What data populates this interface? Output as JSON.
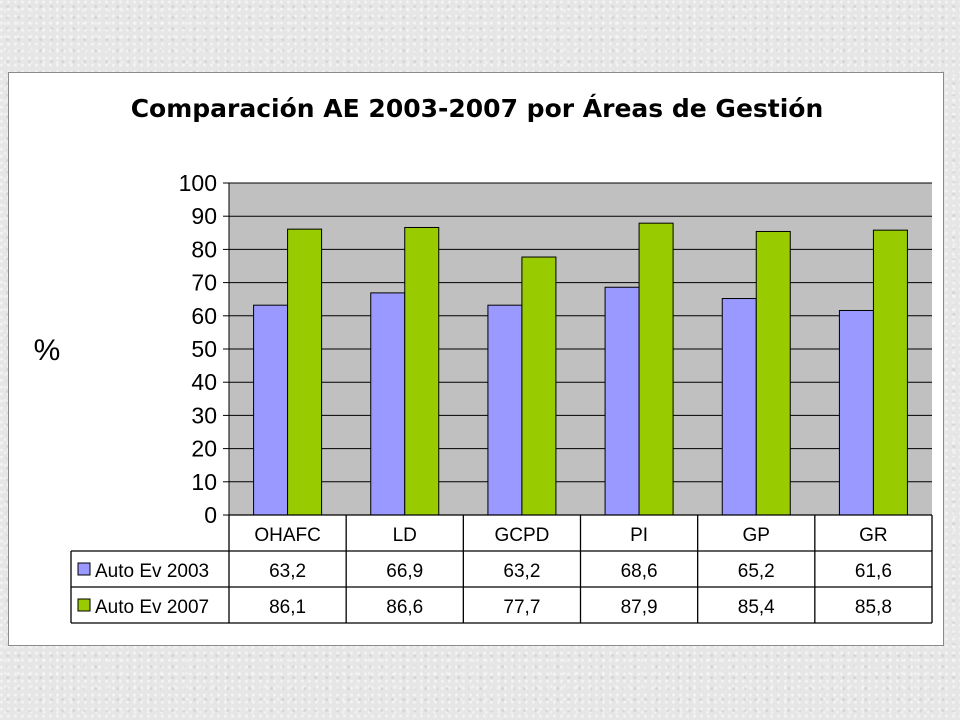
{
  "chart_data": {
    "type": "bar",
    "title": "Comparación AE  2003-2007 por Áreas de Gestión",
    "ylabel": "%",
    "xlabel": "",
    "ylim": [
      0,
      100
    ],
    "yticks": [
      0,
      10,
      20,
      30,
      40,
      50,
      60,
      70,
      80,
      90,
      100
    ],
    "grid": true,
    "legend": "data-table-left",
    "categories": [
      "OHAFC",
      "LD",
      "GCPD",
      "PI",
      "GP",
      "GR"
    ],
    "series": [
      {
        "name": "Auto Ev 2003",
        "color": "#9999ff",
        "values": [
          63.2,
          66.9,
          63.2,
          68.6,
          65.2,
          61.6
        ],
        "labels": [
          "63,2",
          "66,9",
          "63,2",
          "68,6",
          "65,2",
          "61,6"
        ]
      },
      {
        "name": "Auto Ev 2007",
        "color": "#99cc00",
        "values": [
          86.1,
          86.6,
          77.7,
          87.9,
          85.4,
          85.8
        ],
        "labels": [
          "86,1",
          "86,6",
          "77,7",
          "87,9",
          "85,4",
          "85,8"
        ]
      }
    ],
    "plot_background": "#c0c0c0"
  }
}
